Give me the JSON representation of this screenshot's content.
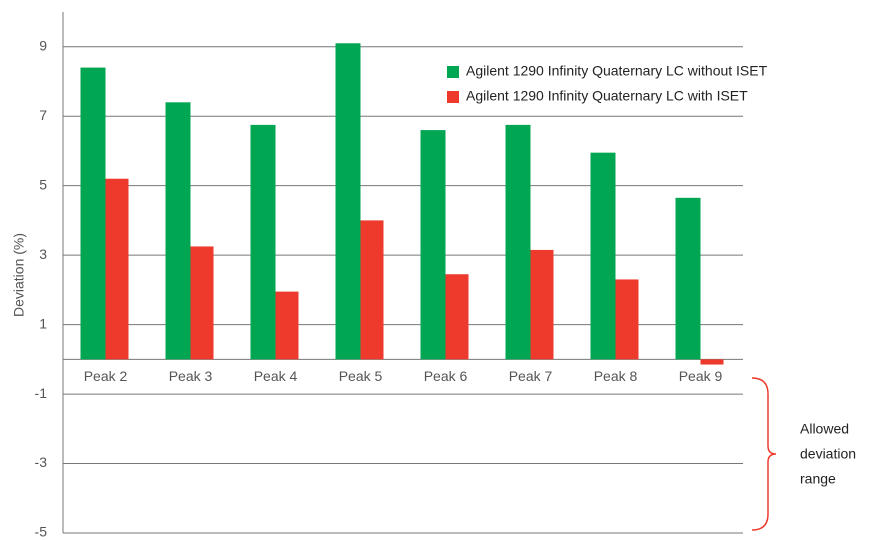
{
  "chart_data": {
    "type": "bar",
    "y_label": "Deviation (%)",
    "categories": [
      "Peak 2",
      "Peak 3",
      "Peak 4",
      "Peak 5",
      "Peak 6",
      "Peak 7",
      "Peak 8",
      "Peak 9"
    ],
    "series": [
      {
        "name": "Agilent 1290 Infinity Quaternary LC without ISET",
        "color": "#00a651",
        "values": [
          8.4,
          7.4,
          6.75,
          9.1,
          6.6,
          6.75,
          5.95,
          4.65
        ]
      },
      {
        "name": "Agilent 1290 Infinity Quaternary LC with ISET",
        "color": "#ee3a2c",
        "values": [
          5.2,
          3.25,
          1.95,
          4.0,
          2.45,
          3.15,
          2.3,
          -0.15
        ]
      }
    ],
    "ylim": [
      -5,
      10
    ],
    "yticks": [
      -5,
      -3,
      -1,
      1,
      3,
      5,
      7,
      9
    ],
    "grid": true,
    "annotation": [
      "Allowed",
      "deviation",
      "range"
    ]
  }
}
